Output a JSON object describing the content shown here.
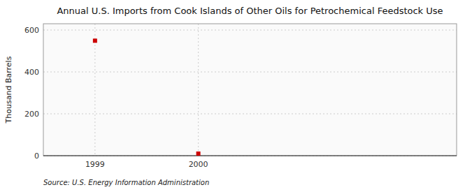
{
  "chart_data": {
    "type": "scatter",
    "title": "Annual U.S. Imports from Cook Islands of Other Oils for Petrochemical Feedstock Use",
    "ylabel": "Thousand Barrels",
    "source": "Source: U.S. Energy Information Administration",
    "x": [
      1999,
      2000
    ],
    "values": [
      549,
      10
    ],
    "color": "#cc0000",
    "marker": "square",
    "xlim": [
      1998.5,
      2002.5
    ],
    "xticks": [
      1999,
      2000
    ],
    "ylim": [
      0,
      630
    ],
    "yticks": [
      0,
      200,
      400,
      600
    ],
    "grid": true
  }
}
